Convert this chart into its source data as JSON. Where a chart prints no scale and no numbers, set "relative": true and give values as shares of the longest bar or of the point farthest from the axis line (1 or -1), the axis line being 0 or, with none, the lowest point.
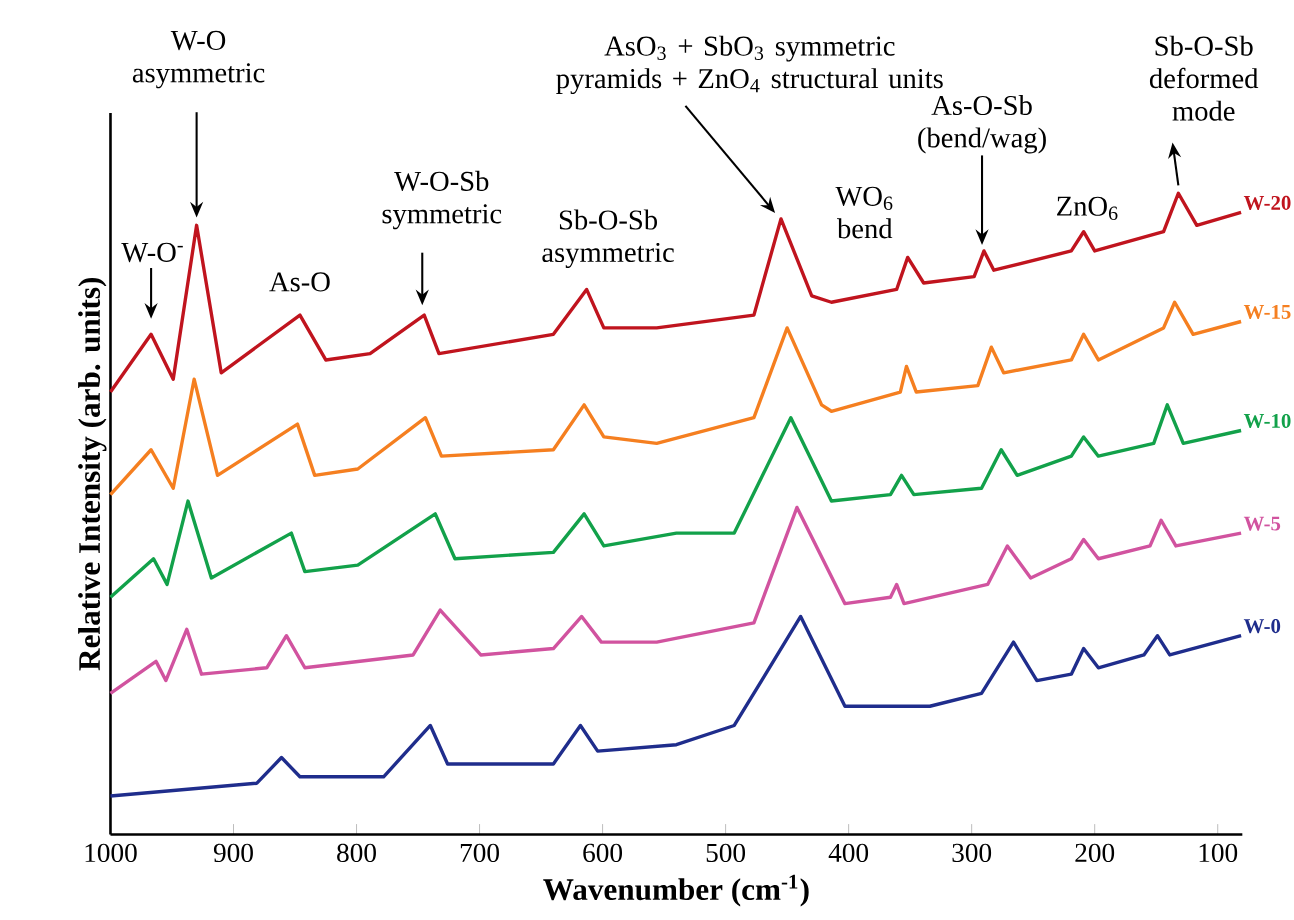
{
  "chart_data": {
    "type": "line",
    "relative": true,
    "xlabel": "Wavenumber (cm$^{-1}$)",
    "ylabel": "Relative Intensity (arb. units)",
    "xlim": [
      1000,
      80
    ],
    "xticks": [
      1000,
      900,
      800,
      700,
      600,
      500,
      400,
      300,
      200,
      100
    ],
    "series": [
      {
        "name": "W-20",
        "color": "#c0141e",
        "x": [
          1000,
          967,
          949,
          930,
          910,
          846,
          825,
          789,
          745,
          733,
          640,
          613,
          599,
          556,
          477,
          455,
          430,
          414,
          361,
          352,
          339,
          298,
          290,
          282,
          219,
          209,
          200,
          144,
          132,
          117,
          81
        ],
        "values": [
          0.69,
          0.78,
          0.71,
          0.95,
          0.72,
          0.81,
          0.74,
          0.75,
          0.81,
          0.75,
          0.78,
          0.85,
          0.79,
          0.79,
          0.81,
          0.96,
          0.84,
          0.83,
          0.85,
          0.9,
          0.86,
          0.87,
          0.91,
          0.88,
          0.91,
          0.94,
          0.91,
          0.94,
          1.0,
          0.95,
          0.97
        ]
      },
      {
        "name": "W-15",
        "color": "#f57f20",
        "x": [
          1000,
          967,
          949,
          932,
          913,
          848,
          834,
          799,
          744,
          731,
          640,
          615,
          599,
          556,
          477,
          450,
          422,
          414,
          358,
          353,
          345,
          295,
          284,
          274,
          219,
          209,
          197,
          144,
          135,
          120,
          81
        ],
        "values": [
          0.53,
          0.6,
          0.54,
          0.71,
          0.56,
          0.64,
          0.56,
          0.57,
          0.65,
          0.59,
          0.6,
          0.67,
          0.62,
          0.61,
          0.65,
          0.79,
          0.67,
          0.66,
          0.69,
          0.73,
          0.69,
          0.7,
          0.76,
          0.72,
          0.74,
          0.78,
          0.74,
          0.79,
          0.83,
          0.78,
          0.8
        ]
      },
      {
        "name": "W-10",
        "color": "#12a14a",
        "x": [
          1000,
          965,
          954,
          937,
          918,
          853,
          842,
          799,
          736,
          720,
          640,
          615,
          599,
          540,
          493,
          447,
          414,
          366,
          357,
          347,
          292,
          276,
          263,
          219,
          209,
          197,
          152,
          141,
          128,
          81
        ],
        "values": [
          0.37,
          0.43,
          0.39,
          0.52,
          0.4,
          0.47,
          0.41,
          0.42,
          0.5,
          0.43,
          0.44,
          0.5,
          0.45,
          0.47,
          0.47,
          0.65,
          0.52,
          0.53,
          0.56,
          0.53,
          0.54,
          0.6,
          0.56,
          0.59,
          0.62,
          0.59,
          0.61,
          0.67,
          0.61,
          0.63
        ]
      },
      {
        "name": "W-5",
        "color": "#d1539f",
        "x": [
          1000,
          963,
          955,
          938,
          926,
          873,
          857,
          842,
          754,
          732,
          699,
          640,
          617,
          601,
          556,
          477,
          442,
          403,
          366,
          361,
          355,
          287,
          271,
          252,
          219,
          209,
          197,
          155,
          146,
          134,
          81
        ],
        "values": [
          0.22,
          0.27,
          0.24,
          0.32,
          0.25,
          0.26,
          0.31,
          0.26,
          0.28,
          0.35,
          0.28,
          0.29,
          0.34,
          0.3,
          0.3,
          0.33,
          0.51,
          0.36,
          0.37,
          0.39,
          0.36,
          0.39,
          0.45,
          0.4,
          0.43,
          0.46,
          0.43,
          0.45,
          0.49,
          0.45,
          0.47
        ]
      },
      {
        "name": "W-0",
        "color": "#1f2d8c",
        "x": [
          1000,
          881,
          861,
          846,
          778,
          740,
          726,
          640,
          618,
          604,
          540,
          493,
          439,
          403,
          334,
          292,
          266,
          247,
          219,
          209,
          197,
          160,
          149,
          139,
          81
        ],
        "values": [
          0.06,
          0.08,
          0.12,
          0.09,
          0.09,
          0.17,
          0.11,
          0.11,
          0.17,
          0.13,
          0.14,
          0.17,
          0.34,
          0.2,
          0.2,
          0.22,
          0.3,
          0.24,
          0.25,
          0.29,
          0.26,
          0.28,
          0.31,
          0.28,
          0.31
        ]
      }
    ],
    "annotations": [
      {
        "text": "W-O$^{-}$",
        "x": 967,
        "y": 0.78
      },
      {
        "text": "W-O asymmetric",
        "x": 930,
        "y": 0.95
      },
      {
        "text": "As-O",
        "x": 846,
        "y": 0.81
      },
      {
        "text": "W-O-Sb symmetric",
        "x": 745,
        "y": 0.81
      },
      {
        "text": "Sb-O-Sb asymmetric",
        "x": 613,
        "y": 0.85
      },
      {
        "text": "AsO$_{3}$ + SbO$_{3}$ symmetric pyramids + ZnO$_{4}$ structural units",
        "x": 455,
        "y": 0.96
      },
      {
        "text": "WO$_{6}$ bend",
        "x": 352,
        "y": 0.9
      },
      {
        "text": "As-O-Sb (bend/wag)",
        "x": 290,
        "y": 0.91
      },
      {
        "text": "ZnO$_{6}$",
        "x": 209,
        "y": 0.94
      },
      {
        "text": "Sb-O-Sb deformed mode",
        "x": 132,
        "y": 1.0
      }
    ]
  }
}
